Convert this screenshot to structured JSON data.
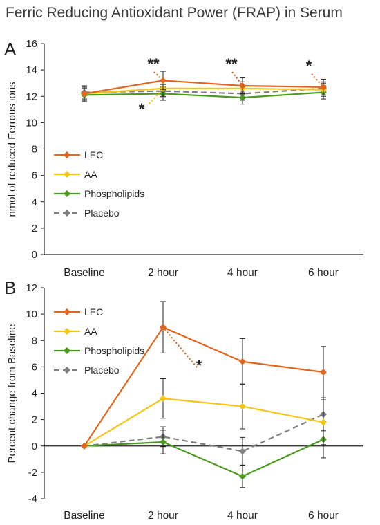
{
  "title": "Ferric Reducing Antioxidant Power (FRAP) in Serum",
  "chart_data": [
    {
      "panel": "A",
      "type": "line",
      "ylabel": "nmol of reduced Ferrous ions",
      "xlabel": "",
      "ylim": [
        0,
        16
      ],
      "yticks": [
        "0",
        "2",
        "4",
        "6",
        "8",
        "10",
        "12",
        "14",
        "16"
      ],
      "categories": [
        "Baseline",
        "2 hour",
        "4 hour",
        "6 hour"
      ],
      "legend_position": "bottom-left",
      "series": [
        {
          "name": "LEC",
          "color": "#e0661e",
          "dashed": false,
          "values": [
            12.2,
            13.2,
            12.8,
            12.7
          ],
          "errors": [
            0.5,
            0.7,
            0.6,
            0.6
          ]
        },
        {
          "name": "AA",
          "color": "#f5c518",
          "dashed": false,
          "values": [
            12.2,
            12.6,
            12.6,
            12.5
          ],
          "errors": [
            0.5,
            0.6,
            0.5,
            0.5
          ]
        },
        {
          "name": "Phospholipids",
          "color": "#4a9a1f",
          "dashed": false,
          "values": [
            12.1,
            12.2,
            11.9,
            12.3
          ],
          "errors": [
            0.5,
            0.5,
            0.5,
            0.5
          ]
        },
        {
          "name": "Placebo",
          "color": "#7f7f7f",
          "dashed": true,
          "values": [
            12.3,
            12.4,
            12.2,
            12.6
          ],
          "errors": [
            0.5,
            0.5,
            0.5,
            0.5
          ]
        }
      ],
      "annotations": [
        {
          "text": "**",
          "category": "2 hour",
          "series": "LEC"
        },
        {
          "text": "*",
          "category": "2 hour",
          "series": "AA"
        },
        {
          "text": "**",
          "category": "4 hour",
          "series": "LEC"
        },
        {
          "text": "*",
          "category": "6 hour",
          "series": "LEC"
        }
      ]
    },
    {
      "panel": "B",
      "type": "line",
      "ylabel": "Percent change from Baseline",
      "xlabel": "",
      "ylim": [
        -4,
        12
      ],
      "yticks": [
        "-4",
        "-2",
        "0",
        "2",
        "4",
        "6",
        "8",
        "10",
        "12"
      ],
      "categories": [
        "Baseline",
        "2 hour",
        "4 hour",
        "6 hour"
      ],
      "legend_position": "top-left",
      "series": [
        {
          "name": "LEC",
          "color": "#e0661e",
          "dashed": false,
          "values": [
            0,
            9.0,
            6.4,
            5.6
          ],
          "errors": [
            0,
            1.95,
            1.75,
            1.95
          ]
        },
        {
          "name": "AA",
          "color": "#f5c518",
          "dashed": false,
          "values": [
            0,
            3.6,
            3.0,
            1.8
          ],
          "errors": [
            0,
            1.5,
            1.7,
            1.7
          ]
        },
        {
          "name": "Phospholipids",
          "color": "#4a9a1f",
          "dashed": false,
          "values": [
            0,
            0.3,
            -2.3,
            0.5
          ],
          "errors": [
            0,
            0.9,
            0.85,
            1.4
          ]
        },
        {
          "name": "Placebo",
          "color": "#7f7f7f",
          "dashed": true,
          "values": [
            0,
            0.7,
            -0.4,
            2.4
          ],
          "errors": [
            0,
            0.75,
            1.05,
            1.25
          ]
        }
      ],
      "annotations": [
        {
          "text": "*",
          "category": "2 hour",
          "series": "LEC"
        }
      ]
    }
  ]
}
